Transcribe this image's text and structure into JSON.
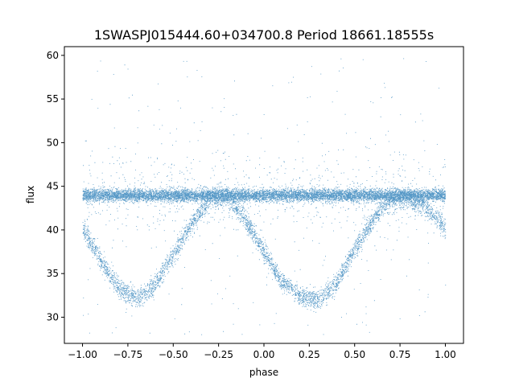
{
  "chart_data": {
    "type": "scatter",
    "title": "1SWASPJ015444.60+034700.8 Period 18661.18555s",
    "xlabel": "phase",
    "ylabel": "flux",
    "xlim": [
      -1.1,
      1.1
    ],
    "ylim": [
      27,
      61
    ],
    "x_ticks": [
      -1.0,
      -0.75,
      -0.5,
      -0.25,
      0.0,
      0.25,
      0.5,
      0.75,
      1.0
    ],
    "x_tick_labels": [
      "−1.00",
      "−0.75",
      "−0.50",
      "−0.25",
      "0.00",
      "0.25",
      "0.50",
      "0.75",
      "1.00"
    ],
    "y_ticks": [
      30,
      35,
      40,
      45,
      50,
      55,
      60
    ],
    "y_tick_labels": [
      "30",
      "35",
      "40",
      "45",
      "50",
      "55",
      "60"
    ],
    "grid": false,
    "point_color": "#1f77b4",
    "series": [
      {
        "description_points": "baseline band",
        "x": [
          -1.0,
          -0.75,
          -0.5,
          -0.25,
          0.0,
          0.25,
          0.5,
          0.75,
          1.0
        ],
        "y": [
          44,
          44,
          44,
          44,
          44,
          44,
          44,
          44,
          44
        ]
      },
      {
        "description_points": "eclipse curve",
        "x": [
          -1.0,
          -0.9,
          -0.8,
          -0.7,
          -0.6,
          -0.5,
          -0.4,
          -0.3,
          -0.2,
          -0.1,
          0.0,
          0.1,
          0.2,
          0.3,
          0.4,
          0.5,
          0.6,
          0.7,
          0.8,
          0.9,
          1.0
        ],
        "y": [
          40.2,
          36.5,
          33.3,
          32.2,
          33.8,
          37.2,
          40.8,
          43.5,
          43.8,
          41.0,
          37.5,
          34.0,
          32.5,
          32.0,
          34.0,
          37.8,
          41.2,
          43.6,
          43.5,
          42.5,
          40.2
        ]
      }
    ]
  }
}
